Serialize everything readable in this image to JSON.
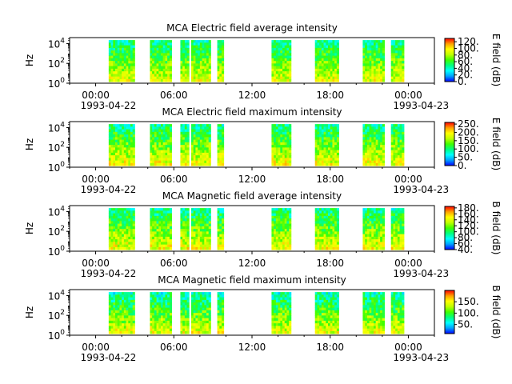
{
  "colors": {
    "colormap": [
      "#0000ff",
      "#00a0ff",
      "#00ffff",
      "#00ff80",
      "#40ff00",
      "#c0ff00",
      "#ffff00",
      "#ffa000",
      "#ff0000"
    ]
  },
  "chart_data": [
    {
      "type": "heatmap",
      "title": "MCA  Electric field average intensity",
      "xlabel": "",
      "ylabel": "Hz",
      "yscale": "log",
      "ylim": [
        1,
        40000
      ],
      "ytick_labels": [
        "10^0",
        "10^2",
        "10^4"
      ],
      "xlim": [
        "1993-04-21T22:00",
        "1993-04-23T02:00"
      ],
      "xtick_labels": [
        "00:00\n1993-04-22",
        "06:00",
        "12:00",
        "18:00",
        "00:00\n1993-04-23"
      ],
      "colorbar": {
        "label": "E field (dB)",
        "range": [
          0,
          130
        ],
        "tick_labels": [
          "0.",
          "20.",
          "40.",
          "60.",
          "80.",
          "100.",
          "120."
        ]
      },
      "data_intervals_utc": [
        [
          "01:00",
          "03:00"
        ],
        [
          "04:10",
          "05:50"
        ],
        [
          "06:30",
          "07:10"
        ],
        [
          "07:20",
          "08:50"
        ],
        [
          "09:20",
          "09:50"
        ],
        [
          "13:30",
          "15:00"
        ],
        [
          "16:50",
          "18:40"
        ],
        [
          "20:30",
          "22:10"
        ],
        [
          "22:40",
          "23:40"
        ]
      ],
      "value_range_db": [
        20,
        120
      ]
    },
    {
      "type": "heatmap",
      "title": "MCA  Electric field maximum intensity",
      "xlabel": "",
      "ylabel": "Hz",
      "yscale": "log",
      "ylim": [
        1,
        40000
      ],
      "ytick_labels": [
        "10^0",
        "10^2",
        "10^4"
      ],
      "xlim": [
        "1993-04-21T22:00",
        "1993-04-23T02:00"
      ],
      "xtick_labels": [
        "00:00\n1993-04-22",
        "06:00",
        "12:00",
        "18:00",
        "00:00\n1993-04-23"
      ],
      "colorbar": {
        "label": "E field (dB)",
        "range": [
          0,
          260
        ],
        "tick_labels": [
          "0.",
          "50.",
          "100.",
          "150.",
          "200.",
          "250."
        ]
      },
      "data_intervals_utc": [
        [
          "01:00",
          "03:00"
        ],
        [
          "04:10",
          "05:50"
        ],
        [
          "06:30",
          "07:10"
        ],
        [
          "07:20",
          "08:50"
        ],
        [
          "09:20",
          "09:50"
        ],
        [
          "13:30",
          "15:00"
        ],
        [
          "16:50",
          "18:40"
        ],
        [
          "20:30",
          "22:10"
        ],
        [
          "22:40",
          "23:40"
        ]
      ],
      "value_range_db": [
        40,
        250
      ]
    },
    {
      "type": "heatmap",
      "title": "MCA  Magnetic field average intensity",
      "xlabel": "",
      "ylabel": "Hz",
      "yscale": "log",
      "ylim": [
        1,
        40000
      ],
      "ytick_labels": [
        "10^0",
        "10^2",
        "10^4"
      ],
      "xlim": [
        "1993-04-21T22:00",
        "1993-04-23T02:00"
      ],
      "xtick_labels": [
        "00:00\n1993-04-22",
        "06:00",
        "12:00",
        "18:00",
        "00:00\n1993-04-23"
      ],
      "colorbar": {
        "label": "B field (dB)",
        "range": [
          40,
          185
        ],
        "tick_labels": [
          "40.",
          "60.",
          "80.",
          "100.",
          "120.",
          "140.",
          "160.",
          "180."
        ]
      },
      "data_intervals_utc": [
        [
          "01:00",
          "03:00"
        ],
        [
          "04:10",
          "05:50"
        ],
        [
          "06:30",
          "07:10"
        ],
        [
          "07:20",
          "08:50"
        ],
        [
          "09:20",
          "09:50"
        ],
        [
          "13:30",
          "15:00"
        ],
        [
          "16:50",
          "18:40"
        ],
        [
          "20:30",
          "22:10"
        ],
        [
          "22:40",
          "23:40"
        ]
      ],
      "value_range_db": [
        60,
        180
      ]
    },
    {
      "type": "heatmap",
      "title": "MCA  Magnetic field maximum intensity",
      "xlabel": "",
      "ylabel": "Hz",
      "yscale": "log",
      "ylim": [
        1,
        40000
      ],
      "ytick_labels": [
        "10^0",
        "10^2",
        "10^4"
      ],
      "xlim": [
        "1993-04-21T22:00",
        "1993-04-23T02:00"
      ],
      "xtick_labels": [
        "00:00\n1993-04-22",
        "06:00",
        "12:00",
        "18:00",
        "00:00\n1993-04-23"
      ],
      "colorbar": {
        "label": "B field (dB)",
        "range": [
          10,
          200
        ],
        "tick_labels": [
          "50.",
          "100.",
          "150."
        ]
      },
      "data_intervals_utc": [
        [
          "01:00",
          "03:00"
        ],
        [
          "04:10",
          "05:50"
        ],
        [
          "06:30",
          "07:10"
        ],
        [
          "07:20",
          "08:50"
        ],
        [
          "09:20",
          "09:50"
        ],
        [
          "13:30",
          "15:00"
        ],
        [
          "16:50",
          "18:40"
        ],
        [
          "20:30",
          "22:10"
        ],
        [
          "22:40",
          "23:40"
        ]
      ],
      "value_range_db": [
        30,
        190
      ]
    }
  ]
}
